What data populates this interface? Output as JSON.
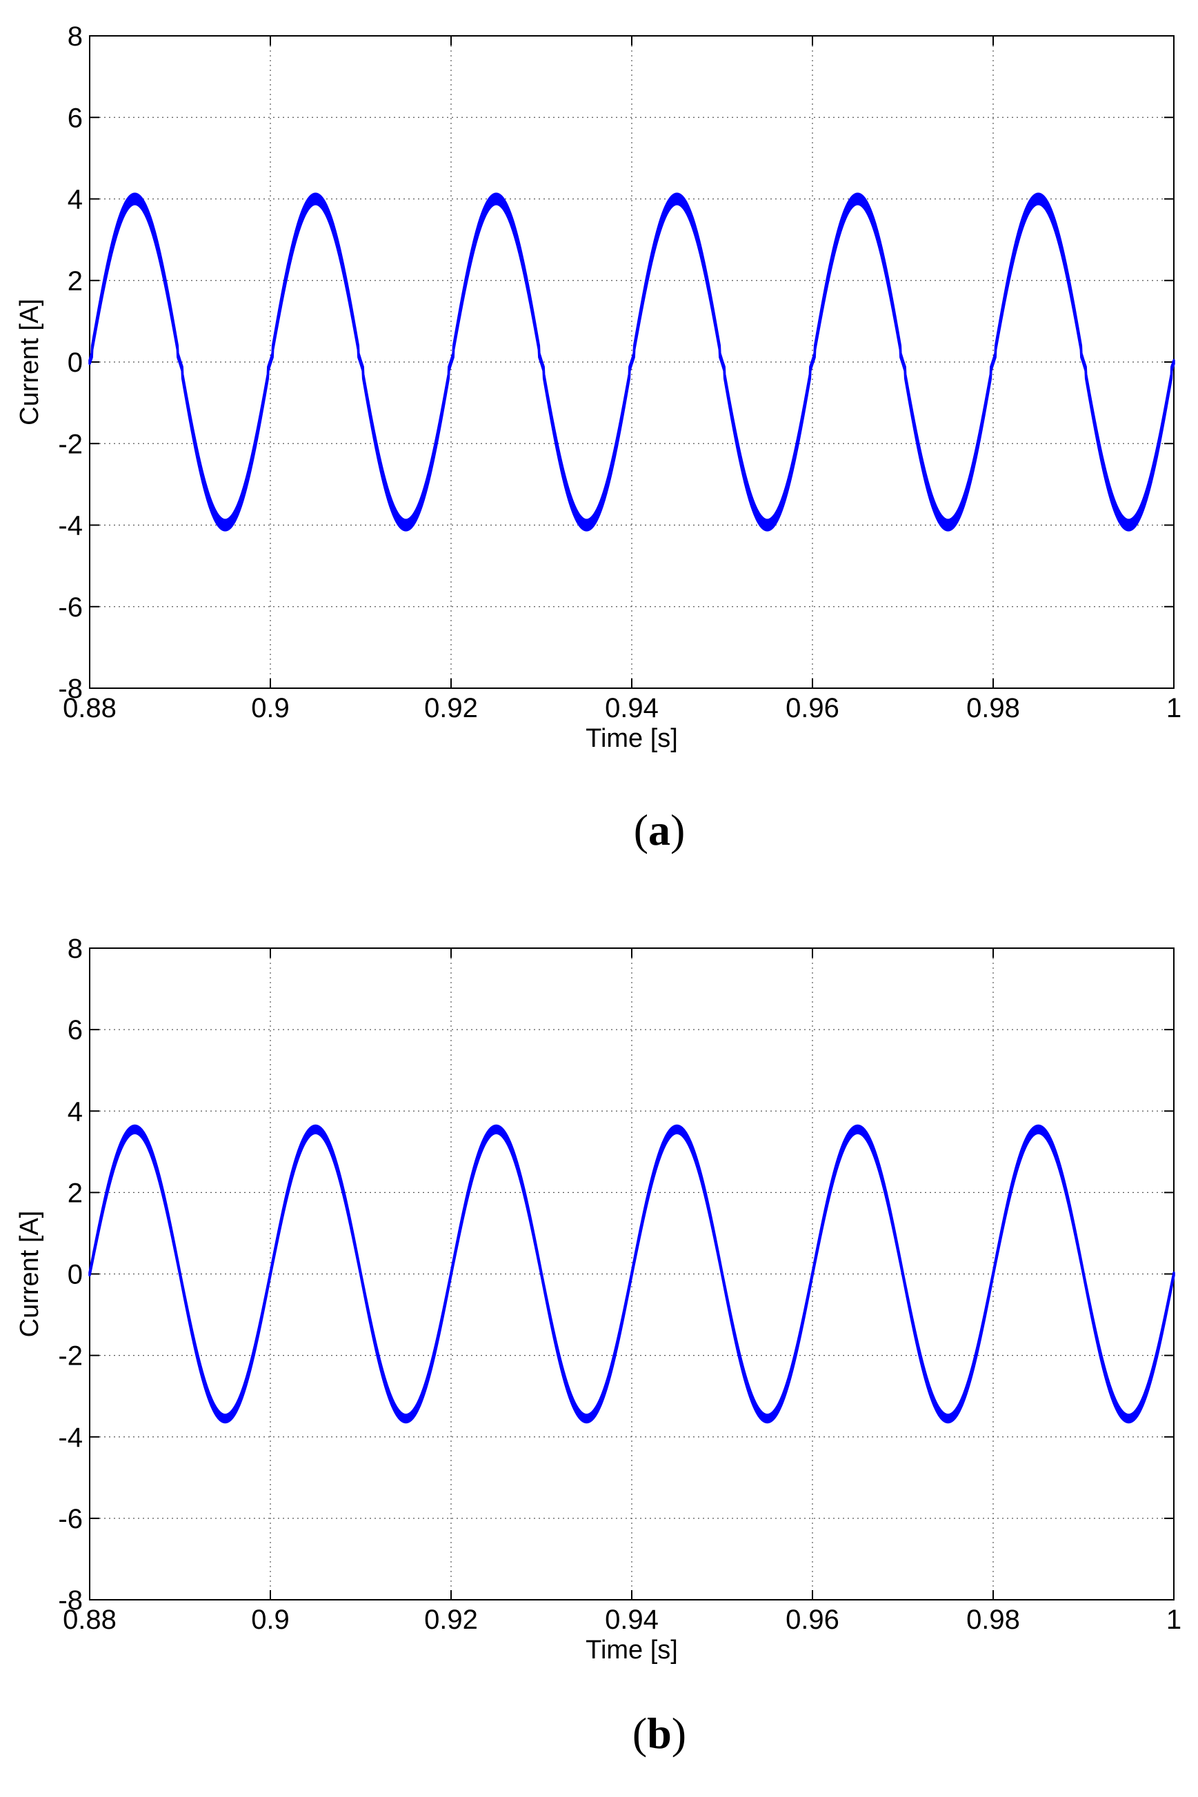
{
  "chart_data": [
    {
      "panel": "a",
      "caption": {
        "open": "(",
        "letter": "a",
        "close": ")"
      },
      "type": "line",
      "xlabel": "Time [s]",
      "ylabel": "Current [A]",
      "xlim": [
        0.88,
        1.0
      ],
      "ylim": [
        -8,
        8
      ],
      "xticks": [
        0.88,
        0.9,
        0.92,
        0.94,
        0.96,
        0.98,
        1.0
      ],
      "xtick_labels": [
        "0.88",
        "0.9",
        "0.92",
        "0.94",
        "0.96",
        "0.98",
        "1"
      ],
      "yticks": [
        -8,
        -6,
        -4,
        -2,
        0,
        2,
        4,
        6,
        8
      ],
      "ytick_labels": [
        "-8",
        "-6",
        "-4",
        "-2",
        "0",
        "2",
        "4",
        "6",
        "8"
      ],
      "grid": true,
      "series": [
        {
          "amplitude": 4.0,
          "frequency_hz": 50,
          "phase_zero_s": 0.88,
          "ripple_band": 0.25,
          "zero_crossing_distortion": true,
          "color": "#0000ff"
        }
      ]
    },
    {
      "panel": "b",
      "caption": {
        "open": "(",
        "letter": "b",
        "close": ")"
      },
      "type": "line",
      "xlabel": "Time [s]",
      "ylabel": "Current [A]",
      "xlim": [
        0.88,
        1.0
      ],
      "ylim": [
        -8,
        8
      ],
      "xticks": [
        0.88,
        0.9,
        0.92,
        0.94,
        0.96,
        0.98,
        1.0
      ],
      "xtick_labels": [
        "0.88",
        "0.9",
        "0.92",
        "0.94",
        "0.96",
        "0.98",
        "1"
      ],
      "yticks": [
        -8,
        -6,
        -4,
        -2,
        0,
        2,
        4,
        6,
        8
      ],
      "ytick_labels": [
        "-8",
        "-6",
        "-4",
        "-2",
        "0",
        "2",
        "4",
        "6",
        "8"
      ],
      "grid": true,
      "series": [
        {
          "amplitude": 3.55,
          "frequency_hz": 50,
          "phase_zero_s": 0.88,
          "ripple_band": 0.18,
          "zero_crossing_distortion": false,
          "color": "#0000ff"
        }
      ]
    }
  ]
}
